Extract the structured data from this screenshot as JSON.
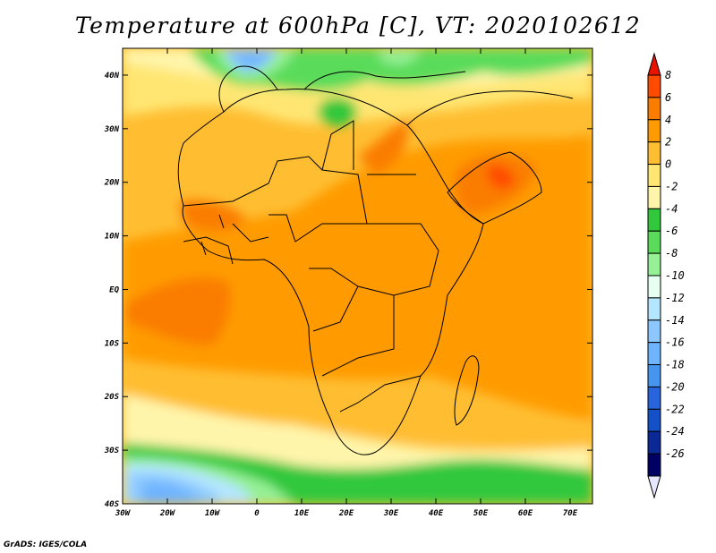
{
  "title": "Temperature at 600hPa [C], VT: 2020102612",
  "credit": "GrADS: IGES/COLA",
  "map": {
    "field": "temperature",
    "level": "600hPa",
    "units": "C",
    "lat_range": [
      -40,
      45
    ],
    "lon_range": [
      -30,
      75
    ],
    "lat_ticks": [
      "40N",
      "30N",
      "20N",
      "10N",
      "EQ",
      "10S",
      "20S",
      "30S",
      "40S"
    ],
    "lon_ticks": [
      "30W",
      "20W",
      "10W",
      "0",
      "10E",
      "20E",
      "30E",
      "40E",
      "50E",
      "60E",
      "70E"
    ]
  },
  "colorbar": {
    "levels": [
      "8",
      "6",
      "4",
      "2",
      "0",
      "-2",
      "-4",
      "-6",
      "-8",
      "-10",
      "-12",
      "-14",
      "-16",
      "-18",
      "-20",
      "-22",
      "-24",
      "-26"
    ],
    "colors": [
      "#e61400",
      "#ff4b00",
      "#fa7d00",
      "#ff9b00",
      "#ffbe32",
      "#ffe673",
      "#fff5aa",
      "#32c83c",
      "#5adc5a",
      "#96f096",
      "#e6fff0",
      "#b4e6ff",
      "#8cc8ff",
      "#6eb4ff",
      "#4696f0",
      "#2864dc",
      "#1450c8",
      "#0a2896",
      "#000064",
      "#e6e6ff"
    ]
  }
}
